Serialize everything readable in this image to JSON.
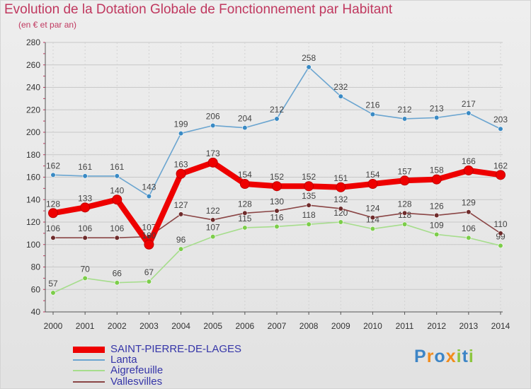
{
  "title": "Evolution de la Dotation Globale de Fonctionnement par Habitant",
  "subtitle": "(en € et par an)",
  "logo": {
    "text": "Proxiti",
    "letters": [
      "P",
      "r",
      "o",
      "x",
      "i",
      "t",
      "i"
    ],
    "colors": [
      "#3d85c6",
      "#f28c1c",
      "#3d85c6",
      "#f28c1c",
      "#8cc63f",
      "#3d85c6",
      "#8cc63f"
    ]
  },
  "chart_data": {
    "type": "line",
    "title": "Evolution de la Dotation Globale de Fonctionnement par Habitant",
    "ylabel": "(en € et par an)",
    "xlabel": "",
    "categories": [
      "2000",
      "2001",
      "2002",
      "2003",
      "2004",
      "2005",
      "2006",
      "2007",
      "2008",
      "2009",
      "2010",
      "2011",
      "2012",
      "2013",
      "2014"
    ],
    "ylim": [
      40,
      280
    ],
    "yticks": [
      40,
      60,
      80,
      100,
      120,
      140,
      160,
      180,
      200,
      220,
      240,
      260,
      280
    ],
    "grid": true,
    "legend_position": "bottom-left",
    "series": [
      {
        "name": "Lanta",
        "color": "#6ba5d0",
        "marker": "#3a8ac4",
        "bold": false,
        "values": [
          162,
          161,
          161,
          143,
          199,
          206,
          204,
          212,
          258,
          232,
          216,
          212,
          213,
          217,
          203
        ]
      },
      {
        "name": "Aigrefeuille",
        "color": "#a6dd8c",
        "marker": "#7ccd4a",
        "bold": false,
        "values": [
          57,
          70,
          66,
          67,
          96,
          107,
          115,
          116,
          118,
          120,
          114,
          118,
          109,
          106,
          99
        ]
      },
      {
        "name": "Vallesvilles",
        "color": "#8a4545",
        "marker": "#6e2b2b",
        "bold": false,
        "values": [
          106,
          106,
          106,
          107,
          127,
          122,
          128,
          130,
          135,
          132,
          124,
          128,
          126,
          129,
          110
        ]
      },
      {
        "name": "SAINT-PIERRE-DE-LAGES",
        "color": "#ee0000",
        "marker": "#ee0000",
        "bold": true,
        "values": [
          128,
          133,
          140,
          100,
          163,
          173,
          154,
          152,
          152,
          151,
          154,
          157,
          158,
          166,
          162
        ]
      }
    ],
    "legend_order": [
      "SAINT-PIERRE-DE-LAGES",
      "Lanta",
      "Aigrefeuille",
      "Vallesvilles"
    ]
  }
}
